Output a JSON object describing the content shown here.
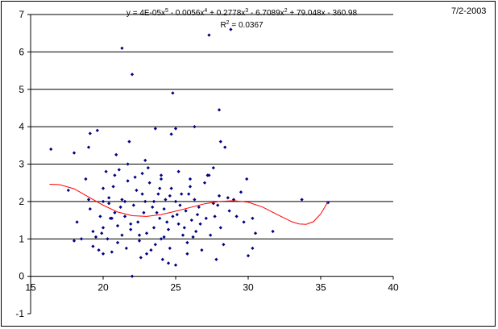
{
  "header": {
    "date": "7/2-2003"
  },
  "chart_data": {
    "type": "scatter",
    "title": "",
    "xlabel": "",
    "ylabel": "",
    "xlim": [
      15,
      40
    ],
    "ylim": [
      -1,
      7
    ],
    "xticks": [
      15,
      20,
      25,
      30,
      35,
      40
    ],
    "yticks": [
      -1,
      0,
      1,
      2,
      3,
      4,
      5,
      6,
      7
    ],
    "xtick_labels": [
      "15",
      "20",
      "25",
      "30",
      "35",
      "40"
    ],
    "ytick_labels": [
      "-1",
      "0",
      "1",
      "2",
      "3",
      "4",
      "5",
      "6",
      "7"
    ],
    "grid": "horizontal",
    "legend": "none",
    "point_color": "#000080",
    "trend_color": "#ff0000",
    "trendline": {
      "equation_prefix": "y = 4E-05x",
      "equation_sup1": "5",
      "equation_mid1": " - 0.0056x",
      "equation_sup2": "4",
      "equation_mid2": " + 0.2778x",
      "equation_sup3": "3",
      "equation_mid3": " - 6.7089x",
      "equation_sup4": "2",
      "equation_tail": " + 79.048x - 360.98",
      "r2_prefix": "R",
      "r2_sup": "2",
      "r2_tail": " = 0.0367",
      "points": [
        [
          16.3,
          2.46
        ],
        [
          17,
          2.45
        ],
        [
          18,
          2.34
        ],
        [
          19,
          2.12
        ],
        [
          20,
          1.9
        ],
        [
          21,
          1.72
        ],
        [
          22,
          1.62
        ],
        [
          23,
          1.6
        ],
        [
          24,
          1.65
        ],
        [
          25,
          1.74
        ],
        [
          26,
          1.84
        ],
        [
          27,
          1.94
        ],
        [
          28,
          2.0
        ],
        [
          29,
          2.02
        ],
        [
          30,
          1.98
        ],
        [
          31,
          1.85
        ],
        [
          32,
          1.65
        ],
        [
          33,
          1.46
        ],
        [
          33.5,
          1.4
        ],
        [
          34,
          1.39
        ],
        [
          34.5,
          1.46
        ],
        [
          35,
          1.67
        ],
        [
          35.5,
          1.99
        ]
      ]
    },
    "points": [
      [
        16.4,
        3.4
      ],
      [
        17.6,
        2.3
      ],
      [
        18,
        3.3
      ],
      [
        18,
        0.95
      ],
      [
        18.2,
        1.45
      ],
      [
        18.5,
        1.0
      ],
      [
        18.8,
        2.6
      ],
      [
        19,
        3.45
      ],
      [
        19.1,
        3.82
      ],
      [
        19,
        2.05
      ],
      [
        19.1,
        1.8
      ],
      [
        19.3,
        1.2
      ],
      [
        19.3,
        0.8
      ],
      [
        19.6,
        3.9
      ],
      [
        19.5,
        1.05
      ],
      [
        19.7,
        0.7
      ],
      [
        19.8,
        1.6
      ],
      [
        20,
        2.35
      ],
      [
        20,
        2.0
      ],
      [
        20,
        1.3
      ],
      [
        20,
        0.6
      ],
      [
        20.2,
        2.8
      ],
      [
        20.3,
        1.0
      ],
      [
        20.4,
        1.95
      ],
      [
        20.5,
        1.55
      ],
      [
        20.6,
        0.65
      ],
      [
        20.7,
        2.4
      ],
      [
        20.9,
        3.25
      ],
      [
        20.8,
        1.7
      ],
      [
        21,
        1.35
      ],
      [
        21,
        0.9
      ],
      [
        21.1,
        2.85
      ],
      [
        21.3,
        2.05
      ],
      [
        21.3,
        1.1
      ],
      [
        21.5,
        1.6
      ],
      [
        21.6,
        0.75
      ],
      [
        21.7,
        2.55
      ],
      [
        21.8,
        3.6
      ],
      [
        21.9,
        1.25
      ],
      [
        22,
        0.0
      ],
      [
        22.1,
        1.9
      ],
      [
        22.3,
        2.3
      ],
      [
        22.4,
        1.45
      ],
      [
        22.5,
        0.95
      ],
      [
        22.7,
        2.75
      ],
      [
        22.8,
        1.7
      ],
      [
        22.9,
        2.0
      ],
      [
        23,
        1.15
      ],
      [
        23,
        0.6
      ],
      [
        23.2,
        2.5
      ],
      [
        23.4,
        1.85
      ],
      [
        23.5,
        1.3
      ],
      [
        23.6,
        0.85
      ],
      [
        23.8,
        2.2
      ],
      [
        23.9,
        1.55
      ],
      [
        24,
        2.6
      ],
      [
        24,
        1.0
      ],
      [
        24.2,
        1.8
      ],
      [
        24.3,
        2.05
      ],
      [
        24.5,
        1.25
      ],
      [
        24.6,
        0.75
      ],
      [
        24.7,
        2.35
      ],
      [
        24.8,
        1.6
      ],
      [
        25,
        2.0
      ],
      [
        25,
        0.3
      ],
      [
        25.2,
        1.4
      ],
      [
        25.4,
        2.2
      ],
      [
        25.5,
        1.1
      ],
      [
        25.7,
        1.75
      ],
      [
        25.8,
        0.9
      ],
      [
        26,
        2.4
      ],
      [
        26.1,
        1.5
      ],
      [
        26.3,
        2.05
      ],
      [
        26.4,
        1.2
      ],
      [
        26.6,
        1.85
      ],
      [
        26.8,
        0.7
      ],
      [
        27,
        2.5
      ],
      [
        27.1,
        1.55
      ],
      [
        27.3,
        2.7
      ],
      [
        27.4,
        1.1
      ],
      [
        27.6,
        1.95
      ],
      [
        27.8,
        0.45
      ],
      [
        28,
        2.15
      ],
      [
        28.1,
        1.3
      ],
      [
        28.3,
        0.85
      ],
      [
        28.7,
        1.75
      ],
      [
        29,
        2.05
      ],
      [
        29.2,
        1.6
      ],
      [
        29.5,
        2.25
      ],
      [
        29.7,
        1.45
      ],
      [
        30,
        0.55
      ],
      [
        30.3,
        1.55
      ],
      [
        30.3,
        0.75
      ],
      [
        30.5,
        1.15
      ],
      [
        31.7,
        1.2
      ],
      [
        33.7,
        2.05
      ],
      [
        35.5,
        1.97
      ],
      [
        21.3,
        6.1
      ],
      [
        22,
        5.4
      ],
      [
        24.8,
        4.9
      ],
      [
        27.3,
        6.45
      ],
      [
        28.8,
        6.6
      ],
      [
        23.6,
        3.95
      ],
      [
        25,
        3.95
      ],
      [
        24.7,
        3.8
      ],
      [
        26.3,
        4.0
      ],
      [
        28,
        4.45
      ],
      [
        28.1,
        3.6
      ],
      [
        28.4,
        3.45
      ],
      [
        27.6,
        2.9
      ],
      [
        27.2,
        2.7
      ],
      [
        22.2,
        2.65
      ],
      [
        23.1,
        2.9
      ],
      [
        24,
        2.7
      ],
      [
        25.2,
        2.8
      ],
      [
        26,
        2.6
      ],
      [
        20.4,
        2.1
      ],
      [
        21.5,
        2.0
      ],
      [
        22.5,
        1.1
      ],
      [
        23.3,
        0.7
      ],
      [
        24.1,
        0.45
      ],
      [
        24.5,
        0.35
      ],
      [
        25.8,
        0.6
      ],
      [
        26.7,
        1.4
      ],
      [
        27.7,
        1.6
      ],
      [
        28.6,
        2.1
      ],
      [
        29.9,
        2.6
      ],
      [
        22.7,
        2.2
      ],
      [
        23.7,
        1.7
      ],
      [
        24.4,
        1.45
      ],
      [
        25.1,
        1.65
      ],
      [
        25.6,
        1.3
      ],
      [
        26.2,
        1.05
      ],
      [
        21.9,
        1.4
      ],
      [
        21.2,
        1.85
      ],
      [
        20.6,
        1.55
      ],
      [
        19.9,
        1.15
      ],
      [
        22.6,
        0.5
      ],
      [
        23.9,
        2.35
      ],
      [
        24.6,
        2.15
      ],
      [
        25.3,
        1.9
      ],
      [
        26.5,
        1.65
      ],
      [
        27.9,
        1.9
      ],
      [
        20.8,
        2.7
      ],
      [
        21.7,
        3.0
      ],
      [
        22.9,
        3.1
      ],
      [
        23.5,
        2.0
      ],
      [
        24.2,
        1.05
      ],
      [
        25.9,
        2.2
      ]
    ]
  }
}
